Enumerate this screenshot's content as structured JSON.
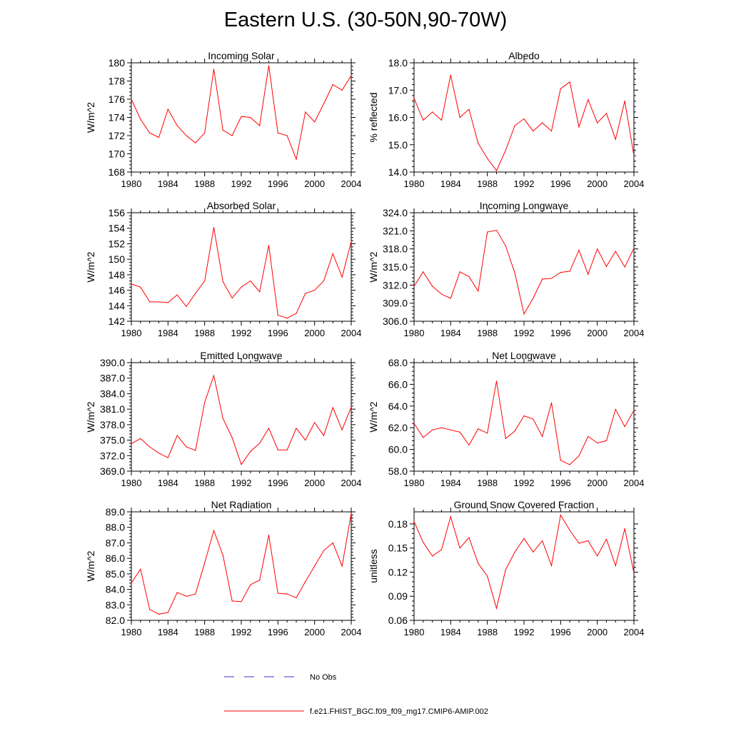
{
  "title": "Eastern U.S. (30-50N,90-70W)",
  "colors": {
    "model": "#ff0000",
    "obs": "#3333cc",
    "axis": "#000000"
  },
  "legend": {
    "obs_label": "No Obs",
    "model_label": "f.e21.FHIST_BGC.f09_f09_mg17.CMIP6-AMIP.002"
  },
  "chart_data": [
    {
      "type": "line",
      "title": "Incoming Solar",
      "ylabel": "W/m^2",
      "xlim": [
        1980,
        2004
      ],
      "ylim": [
        168,
        180
      ],
      "xticks": [
        1980,
        1984,
        1988,
        1992,
        1996,
        2000,
        2004
      ],
      "yticks": [
        "168",
        "170",
        "172",
        "174",
        "176",
        "178",
        "180"
      ],
      "x": [
        1980,
        1981,
        1982,
        1983,
        1984,
        1985,
        1986,
        1987,
        1988,
        1989,
        1990,
        1991,
        1992,
        1993,
        1994,
        1995,
        1996,
        1997,
        1998,
        1999,
        2000,
        2001,
        2002,
        2003,
        2004
      ],
      "series": [
        {
          "values": [
            176.0,
            173.8,
            172.3,
            171.8,
            174.9,
            173.1,
            172.0,
            171.2,
            172.3,
            179.3,
            172.6,
            172.0,
            174.1,
            174.0,
            173.1,
            179.7,
            172.3,
            172.0,
            169.4,
            174.6,
            173.5,
            175.5,
            177.6,
            177.0,
            178.6
          ]
        }
      ]
    },
    {
      "type": "line",
      "title": "Albedo",
      "ylabel": "% reflected",
      "xlim": [
        1980,
        2004
      ],
      "ylim": [
        14.0,
        18.0
      ],
      "xticks": [
        1980,
        1984,
        1988,
        1992,
        1996,
        2000,
        2004
      ],
      "yticks": [
        "14.0",
        "15.0",
        "16.0",
        "17.0",
        "18.0"
      ],
      "x": [
        1980,
        1981,
        1982,
        1983,
        1984,
        1985,
        1986,
        1987,
        1988,
        1989,
        1990,
        1991,
        1992,
        1993,
        1994,
        1995,
        1996,
        1997,
        1998,
        1999,
        2000,
        2001,
        2002,
        2003,
        2004
      ],
      "series": [
        {
          "values": [
            16.7,
            15.9,
            16.2,
            15.9,
            17.55,
            16.0,
            16.3,
            15.05,
            14.5,
            14.05,
            14.8,
            15.7,
            15.95,
            15.5,
            15.8,
            15.5,
            17.05,
            17.3,
            15.65,
            16.65,
            15.8,
            16.15,
            15.2,
            16.6,
            14.6
          ]
        }
      ]
    },
    {
      "type": "line",
      "title": "Absorbed Solar",
      "ylabel": "W/m^2",
      "xlim": [
        1980,
        2004
      ],
      "ylim": [
        142,
        156
      ],
      "xticks": [
        1980,
        1984,
        1988,
        1992,
        1996,
        2000,
        2004
      ],
      "yticks": [
        "142",
        "144",
        "146",
        "148",
        "150",
        "152",
        "154",
        "156"
      ],
      "x": [
        1980,
        1981,
        1982,
        1983,
        1984,
        1985,
        1986,
        1987,
        1988,
        1989,
        1990,
        1991,
        1992,
        1993,
        1994,
        1995,
        1996,
        1997,
        1998,
        1999,
        2000,
        2001,
        2002,
        2003,
        2004
      ],
      "series": [
        {
          "values": [
            146.8,
            146.4,
            144.5,
            144.5,
            144.4,
            145.4,
            143.9,
            145.6,
            147.2,
            154.1,
            147.1,
            145.0,
            146.4,
            147.2,
            145.8,
            151.8,
            142.8,
            142.4,
            143.0,
            145.6,
            146.0,
            147.2,
            150.7,
            147.7,
            152.3
          ]
        }
      ]
    },
    {
      "type": "line",
      "title": "Incoming Longwave",
      "ylabel": "W/m^2",
      "xlim": [
        1980,
        2004
      ],
      "ylim": [
        306.0,
        324.0
      ],
      "xticks": [
        1980,
        1984,
        1988,
        1992,
        1996,
        2000,
        2004
      ],
      "yticks": [
        "306.0",
        "309.0",
        "312.0",
        "315.0",
        "318.0",
        "321.0",
        "324.0"
      ],
      "x": [
        1980,
        1981,
        1982,
        1983,
        1984,
        1985,
        1986,
        1987,
        1988,
        1989,
        1990,
        1991,
        1992,
        1993,
        1994,
        1995,
        1996,
        1997,
        1998,
        1999,
        2000,
        2001,
        2002,
        2003,
        2004
      ],
      "series": [
        {
          "values": [
            311.8,
            314.2,
            311.8,
            310.5,
            309.8,
            314.2,
            313.4,
            311.0,
            320.8,
            321.1,
            318.5,
            314.0,
            307.2,
            309.8,
            313.0,
            313.1,
            314.1,
            314.3,
            317.8,
            313.8,
            318.0,
            315.1,
            317.6,
            315.0,
            318.1
          ]
        }
      ]
    },
    {
      "type": "line",
      "title": "Emitted Longwave",
      "ylabel": "W/m^2",
      "xlim": [
        1980,
        2004
      ],
      "ylim": [
        369.0,
        390.0
      ],
      "xticks": [
        1980,
        1984,
        1988,
        1992,
        1996,
        2000,
        2004
      ],
      "yticks": [
        "369.0",
        "372.0",
        "375.0",
        "378.0",
        "381.0",
        "384.0",
        "387.0",
        "390.0"
      ],
      "x": [
        1980,
        1981,
        1982,
        1983,
        1984,
        1985,
        1986,
        1987,
        1988,
        1989,
        1990,
        1991,
        1992,
        1993,
        1994,
        1995,
        1996,
        1997,
        1998,
        1999,
        2000,
        2001,
        2002,
        2003,
        2004
      ],
      "series": [
        {
          "values": [
            374.3,
            375.3,
            373.7,
            372.5,
            371.6,
            375.9,
            373.7,
            373.0,
            382.3,
            387.5,
            379.2,
            375.5,
            370.3,
            372.8,
            374.4,
            377.3,
            373.1,
            373.1,
            377.3,
            375.0,
            378.4,
            375.9,
            381.3,
            377.0,
            381.4
          ]
        }
      ]
    },
    {
      "type": "line",
      "title": "Net Longwave",
      "ylabel": "W/m^2",
      "xlim": [
        1980,
        2004
      ],
      "ylim": [
        58.0,
        68.0
      ],
      "xticks": [
        1980,
        1984,
        1988,
        1992,
        1996,
        2000,
        2004
      ],
      "yticks": [
        "58.0",
        "60.0",
        "62.0",
        "64.0",
        "66.0",
        "68.0"
      ],
      "x": [
        1980,
        1981,
        1982,
        1983,
        1984,
        1985,
        1986,
        1987,
        1988,
        1989,
        1990,
        1991,
        1992,
        1993,
        1994,
        1995,
        1996,
        1997,
        1998,
        1999,
        2000,
        2001,
        2002,
        2003,
        2004
      ],
      "series": [
        {
          "values": [
            62.4,
            61.1,
            61.8,
            62.0,
            61.8,
            61.6,
            60.4,
            61.9,
            61.5,
            66.3,
            61.0,
            61.7,
            63.1,
            62.8,
            61.2,
            64.3,
            59.0,
            58.6,
            59.4,
            61.2,
            60.6,
            60.8,
            63.7,
            62.1,
            63.6
          ]
        }
      ]
    },
    {
      "type": "line",
      "title": "Net Radiation",
      "ylabel": "W/m^2",
      "xlim": [
        1980,
        2004
      ],
      "ylim": [
        82.0,
        89.0
      ],
      "xticks": [
        1980,
        1984,
        1988,
        1992,
        1996,
        2000,
        2004
      ],
      "yticks": [
        "82.0",
        "83.0",
        "84.0",
        "85.0",
        "86.0",
        "87.0",
        "88.0",
        "89.0"
      ],
      "x": [
        1980,
        1981,
        1982,
        1983,
        1984,
        1985,
        1986,
        1987,
        1988,
        1989,
        1990,
        1991,
        1992,
        1993,
        1994,
        1995,
        1996,
        1997,
        1998,
        1999,
        2000,
        2001,
        2002,
        2003,
        2004
      ],
      "series": [
        {
          "values": [
            84.4,
            85.3,
            82.7,
            82.4,
            82.5,
            83.8,
            83.55,
            83.7,
            85.7,
            87.8,
            86.2,
            83.25,
            83.2,
            84.3,
            84.6,
            87.5,
            83.75,
            83.7,
            83.45,
            84.5,
            85.5,
            86.5,
            87.0,
            85.5,
            88.9
          ]
        }
      ]
    },
    {
      "type": "line",
      "title": "Ground Snow Covered Fraction",
      "ylabel": "unitless",
      "xlim": [
        1980,
        2004
      ],
      "ylim": [
        0.06,
        0.195
      ],
      "xticks": [
        1980,
        1984,
        1988,
        1992,
        1996,
        2000,
        2004
      ],
      "yticks": [
        "0.06",
        "0.09",
        "0.12",
        "0.15",
        "0.18"
      ],
      "x": [
        1980,
        1981,
        1982,
        1983,
        1984,
        1985,
        1986,
        1987,
        1988,
        1989,
        1990,
        1991,
        1992,
        1993,
        1994,
        1995,
        1996,
        1997,
        1998,
        1999,
        2000,
        2001,
        2002,
        2003,
        2004
      ],
      "series": [
        {
          "values": [
            0.183,
            0.157,
            0.14,
            0.148,
            0.189,
            0.15,
            0.163,
            0.131,
            0.115,
            0.075,
            0.123,
            0.145,
            0.162,
            0.145,
            0.159,
            0.128,
            0.191,
            0.172,
            0.156,
            0.159,
            0.14,
            0.161,
            0.128,
            0.174,
            0.119
          ]
        }
      ]
    }
  ]
}
